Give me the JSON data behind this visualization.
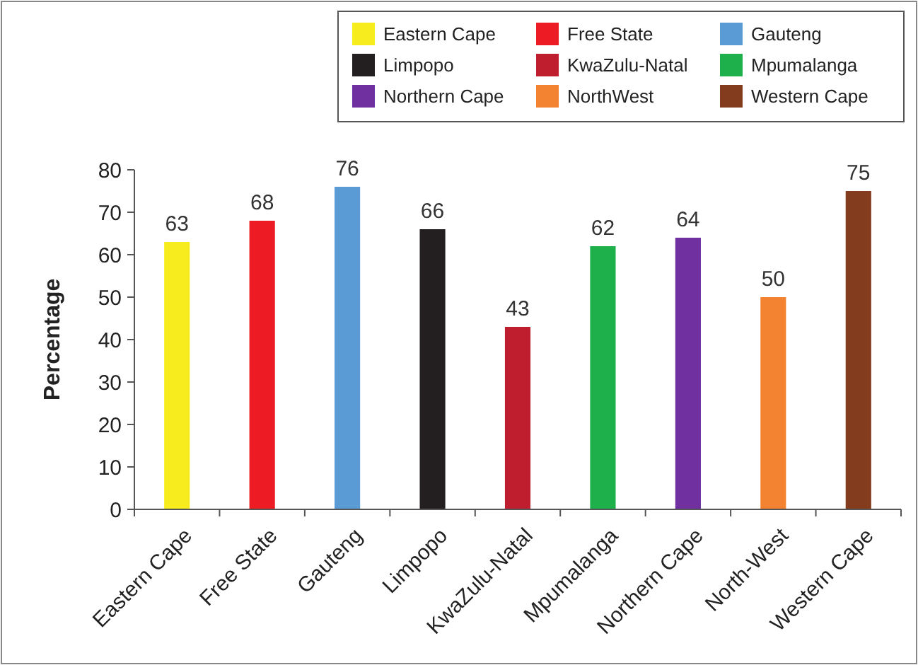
{
  "chart_data": {
    "type": "bar",
    "ylabel": "Percentage",
    "categories": [
      "Eastern Cape",
      "Free State",
      "Gauteng",
      "Limpopo",
      "KwaZulu-Natal",
      "Mpumalanga",
      "Northern Cape",
      "North-West",
      "Western Cape"
    ],
    "data_labels": true,
    "legend": "top right",
    "ylim": [
      0,
      80
    ],
    "yticks": [
      0,
      10,
      20,
      30,
      40,
      50,
      60,
      70,
      80
    ],
    "series": [
      {
        "name": "Eastern Cape",
        "color": "#f7ec1e",
        "values": [
          63,
          null,
          null,
          null,
          null,
          null,
          null,
          null,
          null
        ]
      },
      {
        "name": "Free State",
        "color": "#ed1c24",
        "values": [
          null,
          68,
          null,
          null,
          null,
          null,
          null,
          null,
          null
        ]
      },
      {
        "name": "Gauteng",
        "color": "#5b9bd5",
        "values": [
          null,
          null,
          76,
          null,
          null,
          null,
          null,
          null,
          null
        ]
      },
      {
        "name": "Limpopo",
        "color": "#231f20",
        "values": [
          null,
          null,
          null,
          66,
          null,
          null,
          null,
          null,
          null
        ]
      },
      {
        "name": "KwaZulu-Natal",
        "color": "#be1e2d",
        "values": [
          null,
          null,
          null,
          null,
          43,
          null,
          null,
          null,
          null
        ]
      },
      {
        "name": "Mpumalanga",
        "color": "#1db04b",
        "values": [
          null,
          null,
          null,
          null,
          null,
          62,
          null,
          null,
          null
        ]
      },
      {
        "name": "Northern Cape",
        "color": "#7030a0",
        "values": [
          null,
          null,
          null,
          null,
          null,
          null,
          64,
          null,
          null
        ]
      },
      {
        "name": "NorthWest",
        "color": "#f38231",
        "values": [
          null,
          null,
          null,
          null,
          null,
          null,
          null,
          50,
          null
        ]
      },
      {
        "name": "Western Cape",
        "color": "#843c1e",
        "values": [
          null,
          null,
          null,
          null,
          null,
          null,
          null,
          null,
          75
        ]
      }
    ]
  }
}
